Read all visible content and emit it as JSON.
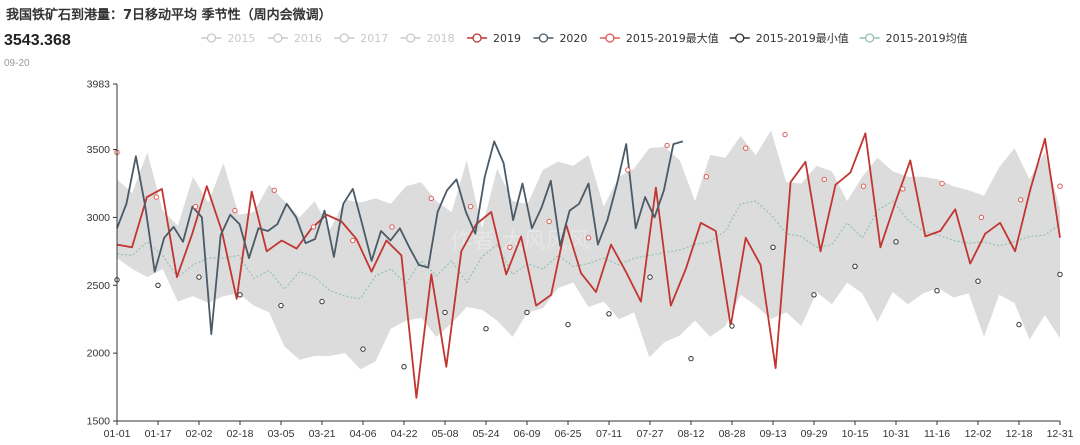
{
  "title": "我国铁矿石到港量：7日移动平均 季节性（周内会微调）",
  "latest": {
    "value": "3543.368",
    "date": "09-20"
  },
  "colors": {
    "hidden": "#c8c8c8",
    "s2019": "#c23531",
    "s2020": "#4a5a66",
    "max": "#e05a55",
    "min": "#333333",
    "mean": "#93c2b4",
    "band": "#dcdcdc",
    "axis": "#333333",
    "grid": "#eeeeee",
    "watermark": "#e6e6e6"
  },
  "watermark": "作者 大风风风",
  "chart_data": {
    "type": "line",
    "title": "我国铁矿石到港量：7日移动平均 季节性（周内会微调）",
    "ylim": [
      1500,
      3983
    ],
    "yticks": [
      1500,
      2000,
      2500,
      3000,
      3500,
      3983
    ],
    "xticks": [
      "01-01",
      "01-17",
      "02-02",
      "02-18",
      "03-05",
      "03-21",
      "04-06",
      "04-22",
      "05-08",
      "05-24",
      "06-09",
      "06-25",
      "07-11",
      "07-27",
      "08-12",
      "08-28",
      "09-13",
      "09-29",
      "10-15",
      "10-31",
      "11-16",
      "12-02",
      "12-18",
      "12-31"
    ],
    "grid": false,
    "legend_position": "top",
    "legend": [
      {
        "name": "2015",
        "visible": false
      },
      {
        "name": "2016",
        "visible": false
      },
      {
        "name": "2017",
        "visible": false
      },
      {
        "name": "2018",
        "visible": false
      },
      {
        "name": "2019",
        "visible": true
      },
      {
        "name": "2020",
        "visible": true
      },
      {
        "name": "2015-2019最大值",
        "visible": true
      },
      {
        "name": "2015-2019最小值",
        "visible": true
      },
      {
        "name": "2015-2019均值",
        "visible": true
      }
    ],
    "band_min": [
      2700,
      2620,
      2560,
      2620,
      2380,
      2420,
      2370,
      2420,
      2440,
      2350,
      2300,
      2050,
      1950,
      1980,
      1980,
      2000,
      1880,
      1940,
      2180,
      2240,
      2260,
      2120,
      2220,
      2340,
      2320,
      2240,
      2120,
      2300,
      2330,
      2480,
      2520,
      2340,
      2380,
      2250,
      2300,
      1970,
      2080,
      2130,
      2240,
      2120,
      2200,
      2430,
      2350,
      2250,
      2300,
      2200,
      2450,
      2360,
      2520,
      2440,
      2230,
      2450,
      2360,
      2440,
      2480,
      2410,
      2440,
      2120,
      2430,
      2370,
      2100,
      2280,
      2110
    ],
    "band_max": [
      3280,
      3180,
      3480,
      3050,
      2940,
      3300,
      3110,
      3400,
      3020,
      3040,
      3240,
      3120,
      3000,
      3120,
      2910,
      3130,
      3110,
      3140,
      3100,
      3230,
      3260,
      3120,
      3040,
      3420,
      2920,
      3360,
      3120,
      3100,
      3350,
      3410,
      3380,
      3460,
      3080,
      3300,
      3360,
      3510,
      3520,
      3420,
      3120,
      3460,
      3440,
      3600,
      3460,
      3640,
      3260,
      3250,
      3380,
      3340,
      3120,
      3300,
      3440,
      3340,
      3300,
      3300,
      3280,
      3230,
      3200,
      3160,
      3370,
      3510,
      3280,
      3480,
      3060
    ],
    "mean": [
      2730,
      2720,
      2820,
      2720,
      2560,
      2650,
      2700,
      2700,
      2720,
      2550,
      2610,
      2470,
      2600,
      2560,
      2460,
      2420,
      2400,
      2570,
      2620,
      2510,
      2680,
      2570,
      2680,
      2520,
      2710,
      2800,
      2580,
      2660,
      2620,
      2720,
      2640,
      2660,
      2700,
      2650,
      2700,
      2720,
      2740,
      2760,
      2800,
      2820,
      2900,
      3100,
      3120,
      3020,
      2880,
      2860,
      2780,
      2800,
      2960,
      2850,
      3050,
      3120,
      2980,
      2900,
      2870,
      2830,
      2810,
      2820,
      2790,
      2820,
      2860,
      2870,
      2950
    ],
    "series_2019": [
      2800,
      2780,
      3150,
      3210,
      2560,
      2870,
      3230,
      2900,
      2400,
      3190,
      2750,
      2830,
      2770,
      2920,
      3020,
      2970,
      2840,
      2600,
      2830,
      2720,
      1670,
      2580,
      1900,
      2750,
      2950,
      3040,
      2580,
      2860,
      2350,
      2430,
      2950,
      2590,
      2450,
      2800,
      2600,
      2380,
      3220,
      2350,
      2620,
      2960,
      2900,
      2200,
      2850,
      2650,
      1890,
      3260,
      3410,
      2750,
      3240,
      3330,
      3620,
      2780,
      3110,
      3420,
      2860,
      2900,
      3060,
      2660,
      2880,
      2960,
      2750,
      3200,
      3580,
      2850
    ],
    "series_2020_x": [
      0,
      1,
      2,
      3,
      4,
      5,
      6,
      7,
      8,
      9,
      10,
      11,
      12,
      13,
      14,
      15,
      16,
      17,
      18,
      19,
      20,
      21,
      22,
      23,
      24,
      25,
      26,
      27,
      28,
      29,
      30,
      31,
      32,
      33,
      34,
      35,
      36,
      37,
      38,
      39,
      40,
      41,
      42,
      43,
      44,
      45,
      46,
      47,
      48,
      49,
      50,
      51,
      52,
      53,
      54,
      55,
      56,
      57,
      58,
      59,
      60
    ],
    "series_2020": [
      2920,
      3100,
      3450,
      3080,
      2600,
      2850,
      2930,
      2820,
      3080,
      3000,
      2140,
      2870,
      3020,
      2950,
      2700,
      2920,
      2900,
      2950,
      3100,
      3000,
      2810,
      2840,
      3050,
      2710,
      3100,
      3210,
      2950,
      2680,
      2900,
      2830,
      2920,
      2780,
      2650,
      2630,
      3040,
      3200,
      3280,
      3040,
      2880,
      3300,
      3560,
      3400,
      2980,
      3250,
      2920,
      3070,
      3270,
      2790,
      3050,
      3100,
      3250,
      2800,
      2980,
      3240,
      3540,
      2920,
      3150,
      3000,
      3200,
      3540,
      3560
    ],
    "max_markers": [
      3480,
      3150,
      3080,
      3050,
      3200,
      2930,
      2830,
      2930,
      3140,
      3080,
      2780,
      2970,
      2850,
      3350,
      3530,
      3300,
      3510,
      3610,
      3280,
      3230,
      3210,
      3250,
      3000,
      3130,
      3230
    ],
    "min_markers": [
      2540,
      2500,
      2560,
      2430,
      2350,
      2380,
      2030,
      1900,
      2300,
      2180,
      2300,
      2210,
      2290,
      2560,
      1960,
      2200,
      2780,
      2430,
      2640,
      2820,
      2460,
      2530,
      2210,
      2580
    ]
  }
}
